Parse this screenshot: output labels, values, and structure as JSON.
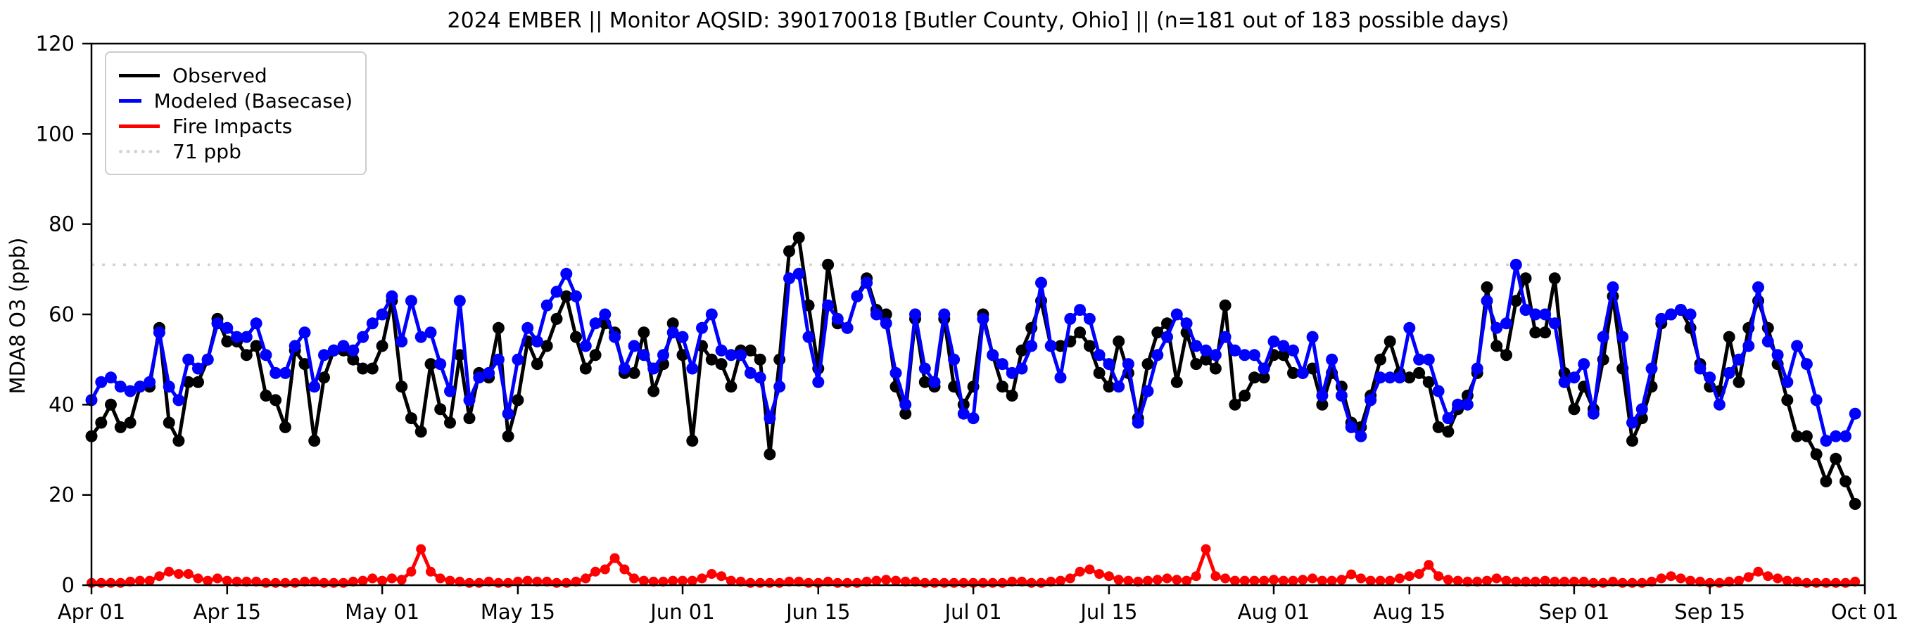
{
  "title": "2024 EMBER || Monitor AQSID: 390170018 [Butler County, Ohio] || (n=181 out of 183 possible days)",
  "ylabel": "MDA8 O3 (ppb)",
  "legend": {
    "items": [
      {
        "label": "Observed",
        "color": "#000000",
        "style": "solid"
      },
      {
        "label": "Modeled (Basecase)",
        "color": "#0000ff",
        "style": "solid"
      },
      {
        "label": "Fire Impacts",
        "color": "#ff0000",
        "style": "solid"
      },
      {
        "label": "71 ppb",
        "color": "#d3d3d3",
        "style": "dotted"
      }
    ]
  },
  "chart_data": {
    "type": "line",
    "title": "2024 EMBER || Monitor AQSID: 390170018 [Butler County, Ohio] || (n=181 out of 183 possible days)",
    "ylabel": "MDA8 O3 (ppb)",
    "x_start_date": "2024-04-01",
    "x_frequency": "daily",
    "n_days": 183,
    "ylim": [
      0,
      120
    ],
    "yticks": [
      0,
      20,
      40,
      60,
      80,
      100,
      120
    ],
    "xticks": [
      {
        "day": 0,
        "label": "Apr 01"
      },
      {
        "day": 14,
        "label": "Apr 15"
      },
      {
        "day": 30,
        "label": "May 01"
      },
      {
        "day": 44,
        "label": "May 15"
      },
      {
        "day": 61,
        "label": "Jun 01"
      },
      {
        "day": 75,
        "label": "Jun 15"
      },
      {
        "day": 91,
        "label": "Jul 01"
      },
      {
        "day": 105,
        "label": "Jul 15"
      },
      {
        "day": 122,
        "label": "Aug 01"
      },
      {
        "day": 136,
        "label": "Aug 15"
      },
      {
        "day": 153,
        "label": "Sep 01"
      },
      {
        "day": 167,
        "label": "Sep 15"
      },
      {
        "day": 183,
        "label": "Oct 01"
      }
    ],
    "reference_line": {
      "value": 71,
      "label": "71 ppb",
      "color": "#d3d3d3"
    },
    "grid": false,
    "legend_position": "upper-left",
    "series": [
      {
        "name": "Observed",
        "color": "#000000",
        "marker": "circle",
        "values": [
          33,
          36,
          40,
          35,
          36,
          44,
          44,
          57,
          36,
          32,
          45,
          45,
          50,
          59,
          54,
          54,
          51,
          53,
          42,
          41,
          35,
          52,
          49,
          32,
          46,
          52,
          52,
          50,
          48,
          48,
          53,
          63,
          44,
          37,
          34,
          49,
          39,
          36,
          51,
          37,
          47,
          46,
          57,
          33,
          41,
          54,
          49,
          53,
          59,
          64,
          55,
          48,
          51,
          58,
          56,
          47,
          47,
          56,
          43,
          49,
          58,
          51,
          32,
          53,
          50,
          49,
          44,
          52,
          52,
          50,
          29,
          50,
          74,
          77,
          62,
          48,
          71,
          58,
          57,
          64,
          68,
          61,
          60,
          44,
          38,
          59,
          45,
          44,
          59,
          44,
          40,
          44,
          60,
          51,
          44,
          42,
          52,
          57,
          63,
          53,
          53,
          54,
          56,
          53,
          47,
          44,
          54,
          47,
          37,
          49,
          56,
          58,
          45,
          56,
          49,
          50,
          48,
          62,
          40,
          42,
          46,
          46,
          51,
          51,
          47,
          47,
          48,
          40,
          47,
          44,
          36,
          35,
          42,
          50,
          54,
          47,
          46,
          47,
          45,
          35,
          34,
          39,
          42,
          47,
          66,
          53,
          51,
          63,
          68,
          56,
          56,
          68,
          47,
          39,
          44,
          39,
          50,
          64,
          48,
          32,
          37,
          44,
          58,
          60,
          61,
          57,
          49,
          44,
          43,
          55,
          45,
          57,
          63,
          57,
          49,
          41,
          33,
          33,
          29,
          23,
          28,
          23,
          18
        ]
      },
      {
        "name": "Modeled (Basecase)",
        "color": "#0000ff",
        "marker": "circle",
        "values": [
          41,
          45,
          46,
          44,
          43,
          44,
          45,
          56,
          44,
          41,
          50,
          48,
          50,
          58,
          57,
          55,
          55,
          58,
          51,
          47,
          47,
          53,
          56,
          44,
          51,
          52,
          53,
          52,
          55,
          58,
          60,
          64,
          54,
          63,
          55,
          56,
          49,
          43,
          63,
          41,
          46,
          47,
          50,
          38,
          50,
          57,
          54,
          62,
          65,
          69,
          64,
          53,
          58,
          60,
          55,
          48,
          53,
          51,
          48,
          51,
          56,
          55,
          48,
          57,
          60,
          52,
          51,
          51,
          47,
          46,
          37,
          44,
          68,
          69,
          55,
          45,
          62,
          59,
          57,
          64,
          67,
          60,
          58,
          47,
          40,
          60,
          48,
          45,
          60,
          50,
          38,
          37,
          59,
          51,
          49,
          47,
          48,
          53,
          67,
          53,
          46,
          59,
          61,
          59,
          51,
          49,
          44,
          49,
          36,
          43,
          51,
          55,
          60,
          58,
          53,
          52,
          51,
          55,
          52,
          51,
          51,
          48,
          54,
          53,
          52,
          47,
          55,
          42,
          50,
          42,
          35,
          33,
          41,
          46,
          46,
          46,
          57,
          50,
          50,
          43,
          37,
          40,
          40,
          48,
          63,
          57,
          58,
          71,
          61,
          60,
          60,
          58,
          45,
          46,
          49,
          38,
          55,
          66,
          55,
          36,
          39,
          48,
          59,
          60,
          61,
          60,
          48,
          46,
          40,
          47,
          50,
          53,
          66,
          54,
          51,
          45,
          53,
          49,
          41,
          32,
          33,
          33,
          38
        ]
      },
      {
        "name": "Fire Impacts",
        "color": "#ff0000",
        "marker": "circle",
        "values": [
          0.5,
          0.5,
          0.5,
          0.5,
          0.8,
          1,
          1,
          2,
          3,
          2.5,
          2.5,
          1.5,
          1,
          1.5,
          1,
          0.8,
          0.8,
          0.8,
          0.5,
          0.5,
          0.5,
          0.5,
          0.8,
          0.8,
          0.5,
          0.5,
          0.5,
          0.8,
          1,
          1.5,
          1,
          1.5,
          1.2,
          3,
          8,
          3,
          1.5,
          1,
          0.8,
          0.5,
          0.5,
          0.8,
          0.5,
          0.5,
          0.8,
          1,
          0.8,
          0.8,
          0.5,
          0.5,
          0.8,
          1.5,
          3,
          3.5,
          6,
          3.5,
          1.5,
          1,
          0.8,
          0.8,
          1,
          1,
          1,
          1.5,
          2.5,
          2,
          1,
          0.8,
          0.5,
          0.5,
          0.5,
          0.5,
          0.8,
          0.8,
          0.5,
          0.5,
          0.8,
          0.5,
          0.5,
          0.5,
          0.8,
          1,
          1.2,
          1,
          0.8,
          0.8,
          0.5,
          0.5,
          0.5,
          0.5,
          0.5,
          0.5,
          0.5,
          0.5,
          0.5,
          0.8,
          0.8,
          0.5,
          0.5,
          0.8,
          1,
          1.5,
          3,
          3.5,
          2.5,
          2,
          1.2,
          1,
          0.8,
          1,
          1.2,
          1.5,
          1.2,
          1,
          2,
          8,
          2,
          1.5,
          1,
          1,
          1,
          1,
          1.2,
          1,
          1,
          1.2,
          1.5,
          1,
          1,
          1.2,
          2.4,
          1.5,
          1,
          1,
          1,
          1.5,
          2,
          2.5,
          4.5,
          2,
          1.2,
          1,
          0.8,
          0.8,
          1,
          1.5,
          1,
          0.8,
          0.8,
          0.8,
          1,
          0.8,
          0.8,
          0.8,
          0.8,
          0.5,
          0.5,
          0.8,
          0.5,
          0.5,
          0.5,
          0.8,
          1.5,
          2,
          1.5,
          1,
          0.8,
          0.5,
          0.5,
          0.8,
          1,
          1.8,
          3,
          2,
          1.5,
          1,
          0.8,
          0.5,
          0.5,
          0.5,
          0.5,
          0.5,
          0.8
        ]
      }
    ]
  }
}
